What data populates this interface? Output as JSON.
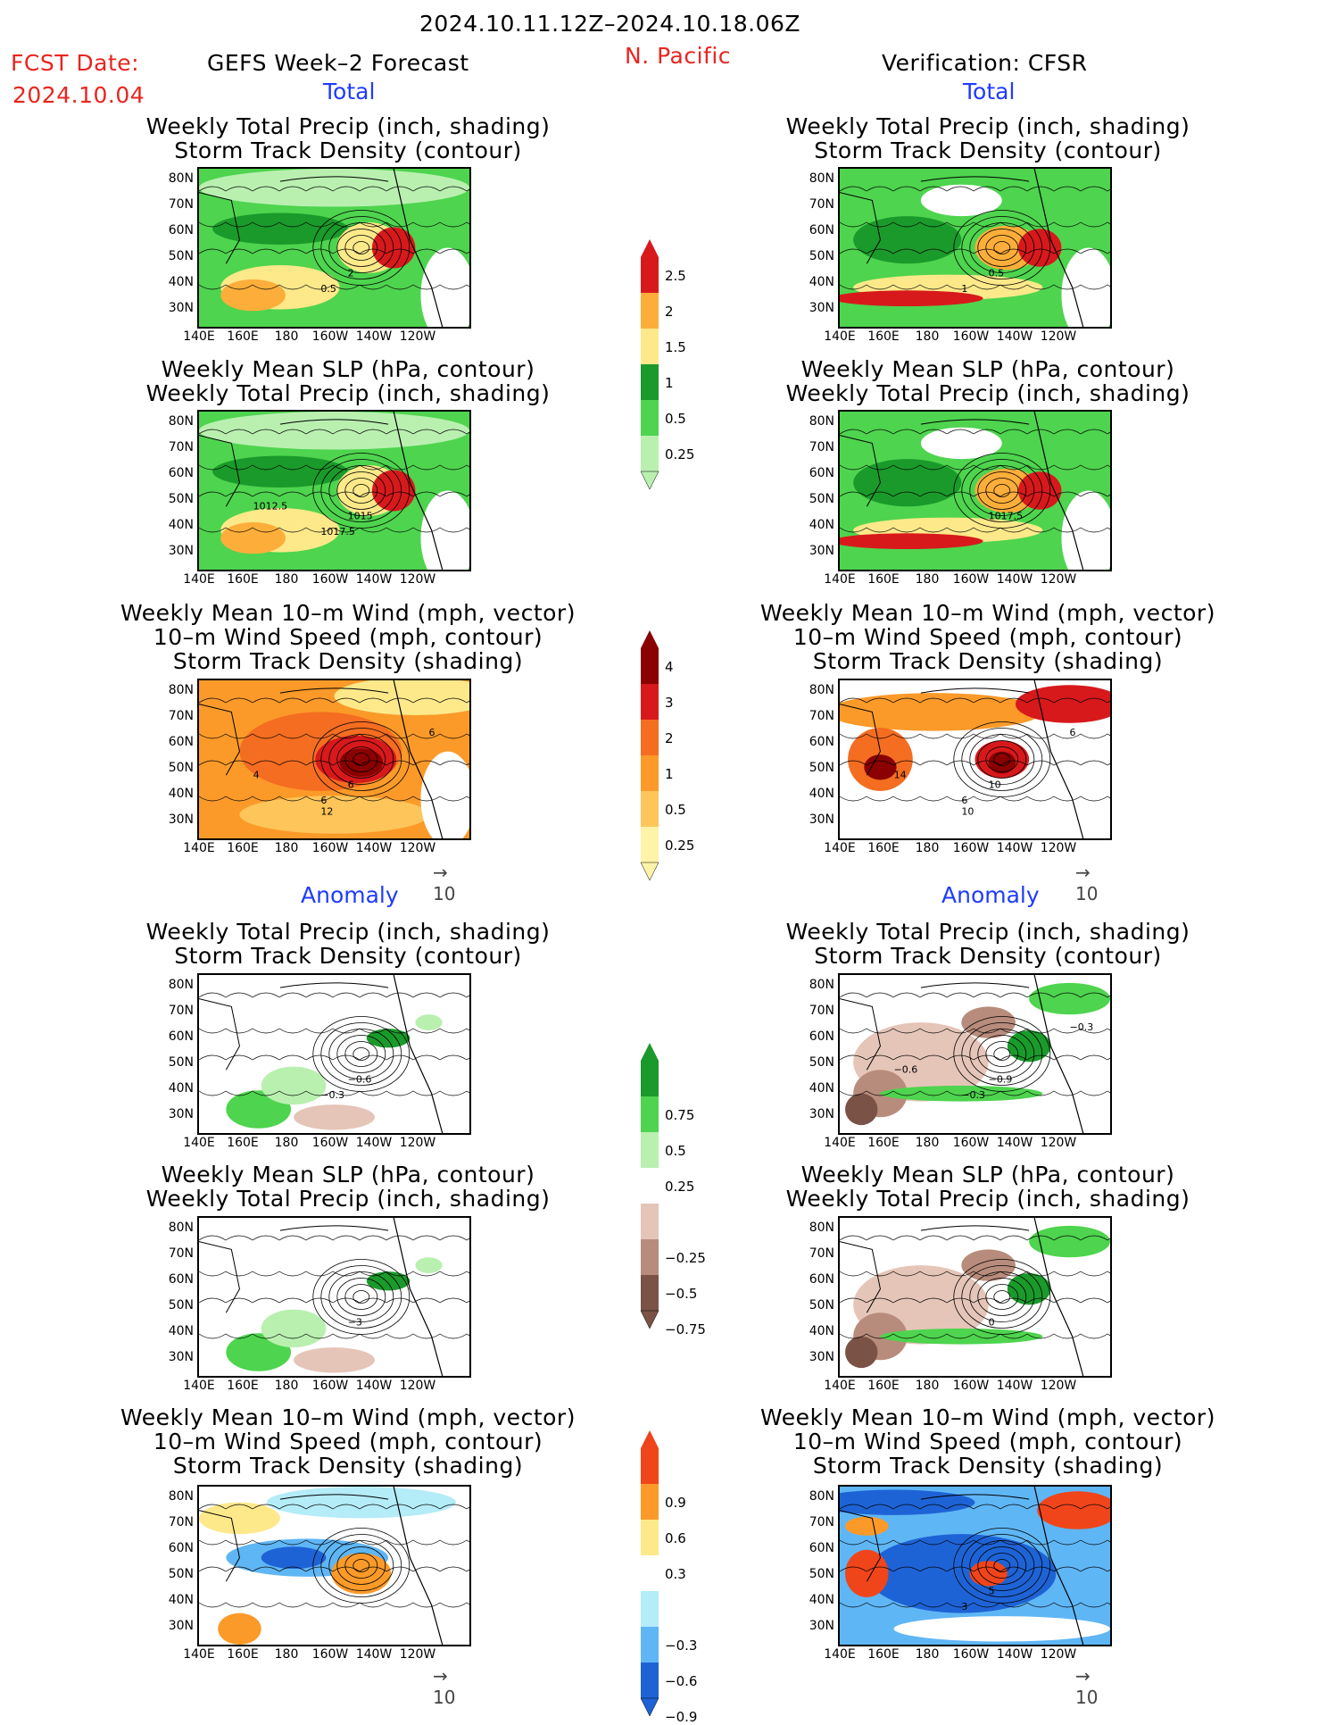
{
  "header": {
    "date_range": "2024.10.11.12Z–2024.10.18.06Z",
    "fcst_label": "FCST Date:",
    "fcst_date": "2024.10.04",
    "forecast_title": "GEFS Week–2 Forecast",
    "region": "N. Pacific",
    "verification_title": "Verification: CFSR"
  },
  "sections": {
    "total": "Total",
    "anomaly": "Anomaly"
  },
  "panel_titles": {
    "precip_track": [
      "Weekly Total Precip (inch, shading)",
      "Storm Track Density (contour)"
    ],
    "slp_precip": [
      "Weekly Mean SLP (hPa, contour)",
      "Weekly Total Precip (inch, shading)"
    ],
    "wind_track": [
      "Weekly Mean 10–m Wind (mph, vector)",
      "10–m Wind Speed (mph, contour)",
      "Storm Track Density (shading)"
    ]
  },
  "axes": {
    "lat_labels": [
      "80N",
      "70N",
      "60N",
      "50N",
      "40N",
      "30N"
    ],
    "lon_labels": [
      "140E",
      "160E",
      "180",
      "160W",
      "140W",
      "120W"
    ]
  },
  "vector_ref": "10",
  "colorbars": {
    "precip_total": {
      "labels": [
        "2.5",
        "2",
        "1.5",
        "1",
        "0.5",
        "0.25"
      ],
      "colors": [
        "#d7191c",
        "#fdae3a",
        "#fde98a",
        "#1a9a2b",
        "#4ed44e",
        "#b9f0b0"
      ]
    },
    "track_total": {
      "labels": [
        "4",
        "3",
        "2",
        "1",
        "0.5",
        "0.25"
      ],
      "colors": [
        "#8b0000",
        "#d7191c",
        "#f46d21",
        "#fb9a29",
        "#fdc55a",
        "#fff3a8"
      ]
    },
    "precip_anom": {
      "labels": [
        "0.75",
        "0.5",
        "0.25",
        "−0.25",
        "−0.5",
        "−0.75"
      ],
      "colors": [
        "#1a9a2b",
        "#4ed44e",
        "#b9f0b0",
        "#ffffff",
        "#e5c5b8",
        "#b88c7c",
        "#7a5246"
      ]
    },
    "track_anom": {
      "labels": [
        "0.9",
        "0.6",
        "0.3",
        "−0.3",
        "−0.6",
        "−0.9"
      ],
      "colors": [
        "#f0451a",
        "#fb9a29",
        "#fde98a",
        "#ffffff",
        "#b4ecf8",
        "#5fb6f5",
        "#1e63d6"
      ]
    }
  },
  "contour_labels": {
    "fc_precip_total": [
      "2",
      "0.5"
    ],
    "fc_slp_total": [
      "1015",
      "1017.5",
      "1012.5"
    ],
    "fc_wind_total": [
      "6",
      "6",
      "4",
      "6",
      "12"
    ],
    "ve_precip_total": [
      "0.5",
      "1"
    ],
    "ve_slp_total": [
      "1017.5"
    ],
    "ve_wind_total": [
      "10",
      "6",
      "14",
      "6",
      "10"
    ],
    "fc_precip_anom": [
      "−0.6",
      "−0.3"
    ],
    "ve_precip_anom": [
      "−0.9",
      "−0.3",
      "−0.6",
      "−0.3"
    ],
    "fc_slp_anom": [
      "−3"
    ],
    "ve_slp_anom": [
      "0"
    ],
    "ve_wind_anom": [
      "5",
      "3"
    ]
  }
}
